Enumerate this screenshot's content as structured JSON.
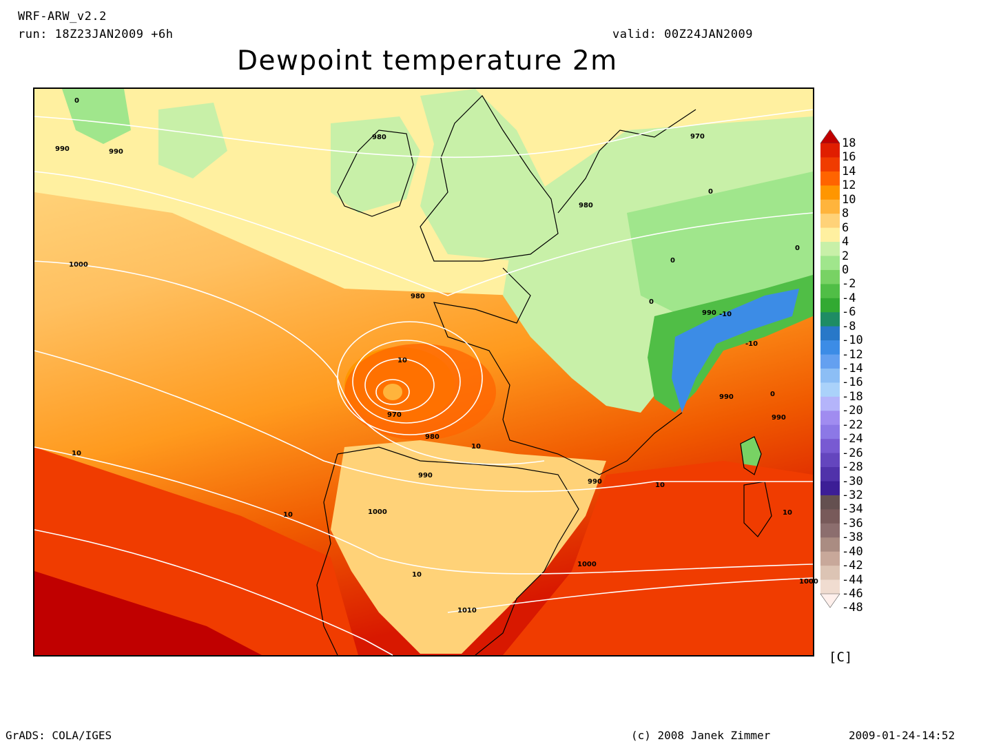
{
  "header": {
    "model": "WRF-ARW_v2.2",
    "run": "run: 18Z23JAN2009 +6h",
    "valid": "valid: 00Z24JAN2009",
    "title": "Dewpoint temperature 2m"
  },
  "colorbar": {
    "unit": "[C]",
    "levels": [
      "18",
      "16",
      "14",
      "12",
      "10",
      "8",
      "6",
      "4",
      "2",
      "0",
      "-2",
      "-4",
      "-6",
      "-8",
      "-10",
      "-12",
      "-14",
      "-16",
      "-18",
      "-20",
      "-22",
      "-24",
      "-26",
      "-28",
      "-30",
      "-32",
      "-34",
      "-36",
      "-38",
      "-40",
      "-42",
      "-44",
      "-46",
      "-48"
    ],
    "colors": [
      "#c00000",
      "#e01e00",
      "#f03c00",
      "#ff6400",
      "#ff9600",
      "#ffb43c",
      "#ffd278",
      "#fff0a0",
      "#c8f0a8",
      "#a0e68c",
      "#78d264",
      "#50be46",
      "#32aa32",
      "#1e8c64",
      "#2878c8",
      "#3c8ce6",
      "#64a0f0",
      "#8cbef5",
      "#aad2fa",
      "#b4b4fa",
      "#a08cf0",
      "#8c78e6",
      "#785ad2",
      "#6446be",
      "#5032aa",
      "#3c1e96",
      "#645050",
      "#785a5a",
      "#8c6e6e",
      "#aa8c82",
      "#c8a89a",
      "#dcc4b4",
      "#f0dcd0",
      "#fff0ec"
    ]
  },
  "map": {
    "isobar_labels": [
      "980",
      "990",
      "970",
      "1000",
      "980",
      "990",
      "970",
      "980",
      "980",
      "990",
      "1000",
      "990",
      "990",
      "990",
      "1000",
      "1010",
      "1000",
      "990"
    ],
    "temp_labels": [
      "0",
      "0",
      "0",
      "0",
      "0",
      "10",
      "10",
      "10",
      "10",
      "10",
      "10",
      "10",
      "-10",
      "-10",
      "0"
    ]
  },
  "footer": {
    "software": "GrADS: COLA/IGES",
    "copyright": "(c) 2008 Janek Zimmer",
    "timestamp": "2009-01-24-14:52"
  }
}
